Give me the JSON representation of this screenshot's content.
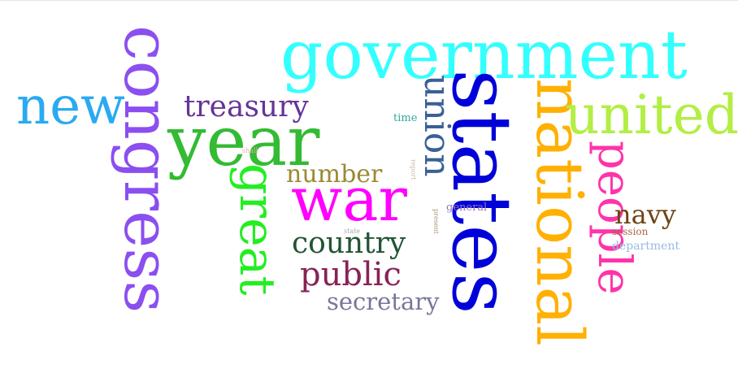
{
  "words": {
    "government": {
      "text": "government",
      "color": "#33ffff"
    },
    "congress": {
      "text": "congress",
      "color": "#8b4ff0"
    },
    "states": {
      "text": "states",
      "color": "#0000d8"
    },
    "national": {
      "text": "national",
      "color": "#ffb000"
    },
    "new": {
      "text": "new",
      "color": "#2aaaf0"
    },
    "year": {
      "text": "year",
      "color": "#33bb33"
    },
    "united": {
      "text": "united",
      "color": "#b2ee44"
    },
    "war": {
      "text": "war",
      "color": "#ff00ff"
    },
    "treasury": {
      "text": "treasury",
      "color": "#663399"
    },
    "union": {
      "text": "union",
      "color": "#3a6095"
    },
    "great": {
      "text": "great",
      "color": "#22ee22"
    },
    "people": {
      "text": "people",
      "color": "#ff33aa"
    },
    "number": {
      "text": "number",
      "color": "#9a8a33"
    },
    "country": {
      "text": "country",
      "color": "#225533"
    },
    "public": {
      "text": "public",
      "color": "#882255"
    },
    "secretary": {
      "text": "secretary",
      "color": "#777799"
    },
    "navy": {
      "text": "navy",
      "color": "#6b4411"
    },
    "session": {
      "text": "session",
      "color": "#aa6644"
    },
    "department": {
      "text": "department",
      "color": "#99bbdd"
    },
    "time": {
      "text": "time",
      "color": "#33aa99"
    },
    "general": {
      "text": "general",
      "color": "#9977bb"
    },
    "state": {
      "text": "state",
      "color": "#aaaaaa"
    },
    "shall": {
      "text": "shall",
      "color": "#eeaaaa"
    },
    "report": {
      "text": "report",
      "color": "#ccbbaa"
    },
    "present": {
      "text": "present",
      "color": "#aa9977"
    }
  }
}
